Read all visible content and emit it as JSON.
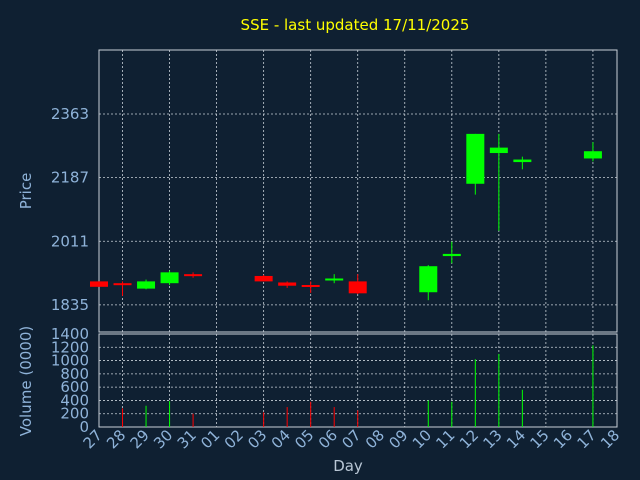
{
  "chart_data": [
    {
      "type": "candlestick",
      "title": "SSE - last updated 17/11/2025",
      "ylabel": "Price",
      "xlabel": "",
      "y_ticks": [
        "2363",
        "2187",
        "2011",
        "1835"
      ],
      "ylim": [
        1760,
        2540
      ],
      "x_categories": [
        "27",
        "28",
        "29",
        "30",
        "31",
        "01",
        "02",
        "03",
        "04",
        "05",
        "06",
        "07",
        "08",
        "09",
        "10",
        "11",
        "12",
        "13",
        "14",
        "15",
        "16",
        "17",
        "18"
      ],
      "colors": {
        "up": "#00ff00",
        "down": "#ff0000"
      },
      "candles": [
        {
          "day": "27",
          "open": 1900,
          "high": 1900,
          "low": 1885,
          "close": 1885
        },
        {
          "day": "28",
          "open": 1895,
          "high": 1900,
          "low": 1860,
          "close": 1890
        },
        {
          "day": "29",
          "open": 1880,
          "high": 1905,
          "low": 1878,
          "close": 1900
        },
        {
          "day": "30",
          "open": 1895,
          "high": 1930,
          "low": 1890,
          "close": 1925
        },
        {
          "day": "31",
          "open": 1920,
          "high": 1925,
          "low": 1910,
          "close": 1915
        },
        {
          "day": "03",
          "open": 1915,
          "high": 1918,
          "low": 1900,
          "close": 1900
        },
        {
          "day": "04",
          "open": 1897,
          "high": 1900,
          "low": 1882,
          "close": 1888
        },
        {
          "day": "05",
          "open": 1890,
          "high": 1900,
          "low": 1868,
          "close": 1885
        },
        {
          "day": "06",
          "open": 1905,
          "high": 1920,
          "low": 1895,
          "close": 1908
        },
        {
          "day": "07",
          "open": 1900,
          "high": 1920,
          "low": 1865,
          "close": 1867
        },
        {
          "day": "10",
          "open": 1870,
          "high": 1945,
          "low": 1848,
          "close": 1942
        },
        {
          "day": "11",
          "open": 1970,
          "high": 2010,
          "low": 1950,
          "close": 1976
        },
        {
          "day": "12",
          "open": 2170,
          "high": 2308,
          "low": 2140,
          "close": 2308
        },
        {
          "day": "13",
          "open": 2255,
          "high": 2308,
          "low": 2040,
          "close": 2270
        },
        {
          "day": "14",
          "open": 2230,
          "high": 2245,
          "low": 2210,
          "close": 2237
        },
        {
          "day": "17",
          "open": 2240,
          "high": 2285,
          "low": 2232,
          "close": 2260
        }
      ]
    },
    {
      "type": "bar",
      "ylabel": "Volume (0000)",
      "xlabel": "Day",
      "y_ticks": [
        "1400",
        "1200",
        "1000",
        "800",
        "600",
        "400",
        "200",
        "0"
      ],
      "ylim": [
        0,
        1400
      ],
      "x_categories": [
        "27",
        "28",
        "29",
        "30",
        "31",
        "01",
        "02",
        "03",
        "04",
        "05",
        "06",
        "07",
        "08",
        "09",
        "10",
        "11",
        "12",
        "13",
        "14",
        "15",
        "16",
        "17",
        "18"
      ],
      "series": [
        {
          "values": [
            {
              "day": "28",
              "value": 280,
              "direction": "down"
            },
            {
              "day": "29",
              "value": 320,
              "direction": "up"
            },
            {
              "day": "30",
              "value": 390,
              "direction": "up"
            },
            {
              "day": "31",
              "value": 200,
              "direction": "down"
            },
            {
              "day": "03",
              "value": 220,
              "direction": "down"
            },
            {
              "day": "04",
              "value": 300,
              "direction": "down"
            },
            {
              "day": "05",
              "value": 380,
              "direction": "down"
            },
            {
              "day": "06",
              "value": 300,
              "direction": "down"
            },
            {
              "day": "07",
              "value": 250,
              "direction": "down"
            },
            {
              "day": "10",
              "value": 400,
              "direction": "up"
            },
            {
              "day": "11",
              "value": 380,
              "direction": "up"
            },
            {
              "day": "12",
              "value": 1020,
              "direction": "up"
            },
            {
              "day": "13",
              "value": 1100,
              "direction": "up"
            },
            {
              "day": "14",
              "value": 560,
              "direction": "up"
            },
            {
              "day": "17",
              "value": 1230,
              "direction": "up"
            }
          ]
        }
      ]
    }
  ]
}
